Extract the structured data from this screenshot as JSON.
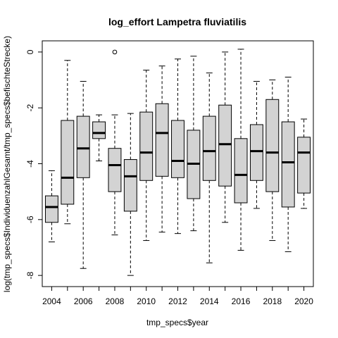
{
  "chart_data": {
    "type": "boxplot",
    "title": "log_effort Lampetra fluviatilis",
    "xlabel": "tmp_specs$year",
    "ylabel": "log(tmp_specs$IndividuenzahlGesamt/tmp_specs$befischteStrecke)",
    "ylim": [
      -8.4,
      0.4
    ],
    "y_ticks": [
      0,
      -2,
      -4,
      -6,
      -8
    ],
    "y_tick_labels": [
      "0",
      "-2",
      "-4",
      "-6",
      "-8"
    ],
    "x_tick_labels": [
      "2004",
      "2006",
      "2008",
      "2010",
      "2012",
      "2014",
      "2016",
      "2018",
      "2020"
    ],
    "x_tick_positions": [
      2004,
      2006,
      2008,
      2010,
      2012,
      2014,
      2016,
      2018,
      2020
    ],
    "box_fill": "#d3d3d3",
    "boxes": [
      {
        "year": 2004,
        "whisker_low": -6.8,
        "q1": -6.1,
        "median": -5.55,
        "q3": -5.15,
        "whisker_high": -4.25,
        "outliers": []
      },
      {
        "year": 2005,
        "whisker_low": -6.15,
        "q1": -5.45,
        "median": -4.5,
        "q3": -2.45,
        "whisker_high": -0.3,
        "outliers": []
      },
      {
        "year": 2006,
        "whisker_low": -7.75,
        "q1": -4.5,
        "median": -3.45,
        "q3": -2.3,
        "whisker_high": -1.05,
        "outliers": []
      },
      {
        "year": 2007,
        "whisker_low": -3.9,
        "q1": -3.1,
        "median": -2.9,
        "q3": -2.5,
        "whisker_high": -2.25,
        "outliers": []
      },
      {
        "year": 2008,
        "whisker_low": -6.55,
        "q1": -5.0,
        "median": -4.05,
        "q3": -3.45,
        "whisker_high": -2.25,
        "outliers": [
          0.0
        ]
      },
      {
        "year": 2009,
        "whisker_low": -8.0,
        "q1": -5.7,
        "median": -4.45,
        "q3": -3.85,
        "whisker_high": -2.2,
        "outliers": []
      },
      {
        "year": 2010,
        "whisker_low": -6.75,
        "q1": -4.6,
        "median": -3.6,
        "q3": -2.15,
        "whisker_high": -0.65,
        "outliers": []
      },
      {
        "year": 2011,
        "whisker_low": -6.45,
        "q1": -4.45,
        "median": -2.9,
        "q3": -1.85,
        "whisker_high": -0.5,
        "outliers": []
      },
      {
        "year": 2012,
        "whisker_low": -6.5,
        "q1": -4.5,
        "median": -3.9,
        "q3": -2.45,
        "whisker_high": -0.25,
        "outliers": []
      },
      {
        "year": 2013,
        "whisker_low": -6.4,
        "q1": -5.25,
        "median": -4.0,
        "q3": -2.8,
        "whisker_high": -0.15,
        "outliers": []
      },
      {
        "year": 2014,
        "whisker_low": -7.55,
        "q1": -4.6,
        "median": -3.55,
        "q3": -2.3,
        "whisker_high": -0.75,
        "outliers": []
      },
      {
        "year": 2015,
        "whisker_low": -6.1,
        "q1": -4.8,
        "median": -3.3,
        "q3": -1.9,
        "whisker_high": 0.0,
        "outliers": []
      },
      {
        "year": 2016,
        "whisker_low": -7.1,
        "q1": -5.4,
        "median": -4.4,
        "q3": -3.1,
        "whisker_high": 0.1,
        "outliers": []
      },
      {
        "year": 2017,
        "whisker_low": -5.6,
        "q1": -4.6,
        "median": -3.55,
        "q3": -2.6,
        "whisker_high": -1.05,
        "outliers": []
      },
      {
        "year": 2018,
        "whisker_low": -6.75,
        "q1": -5.0,
        "median": -3.6,
        "q3": -1.7,
        "whisker_high": -1.0,
        "outliers": []
      },
      {
        "year": 2019,
        "whisker_low": -7.15,
        "q1": -5.55,
        "median": -3.95,
        "q3": -2.5,
        "whisker_high": -0.9,
        "outliers": []
      },
      {
        "year": 2020,
        "whisker_low": -5.6,
        "q1": -5.05,
        "median": -3.6,
        "q3": -3.05,
        "whisker_high": -2.4,
        "outliers": []
      }
    ]
  }
}
